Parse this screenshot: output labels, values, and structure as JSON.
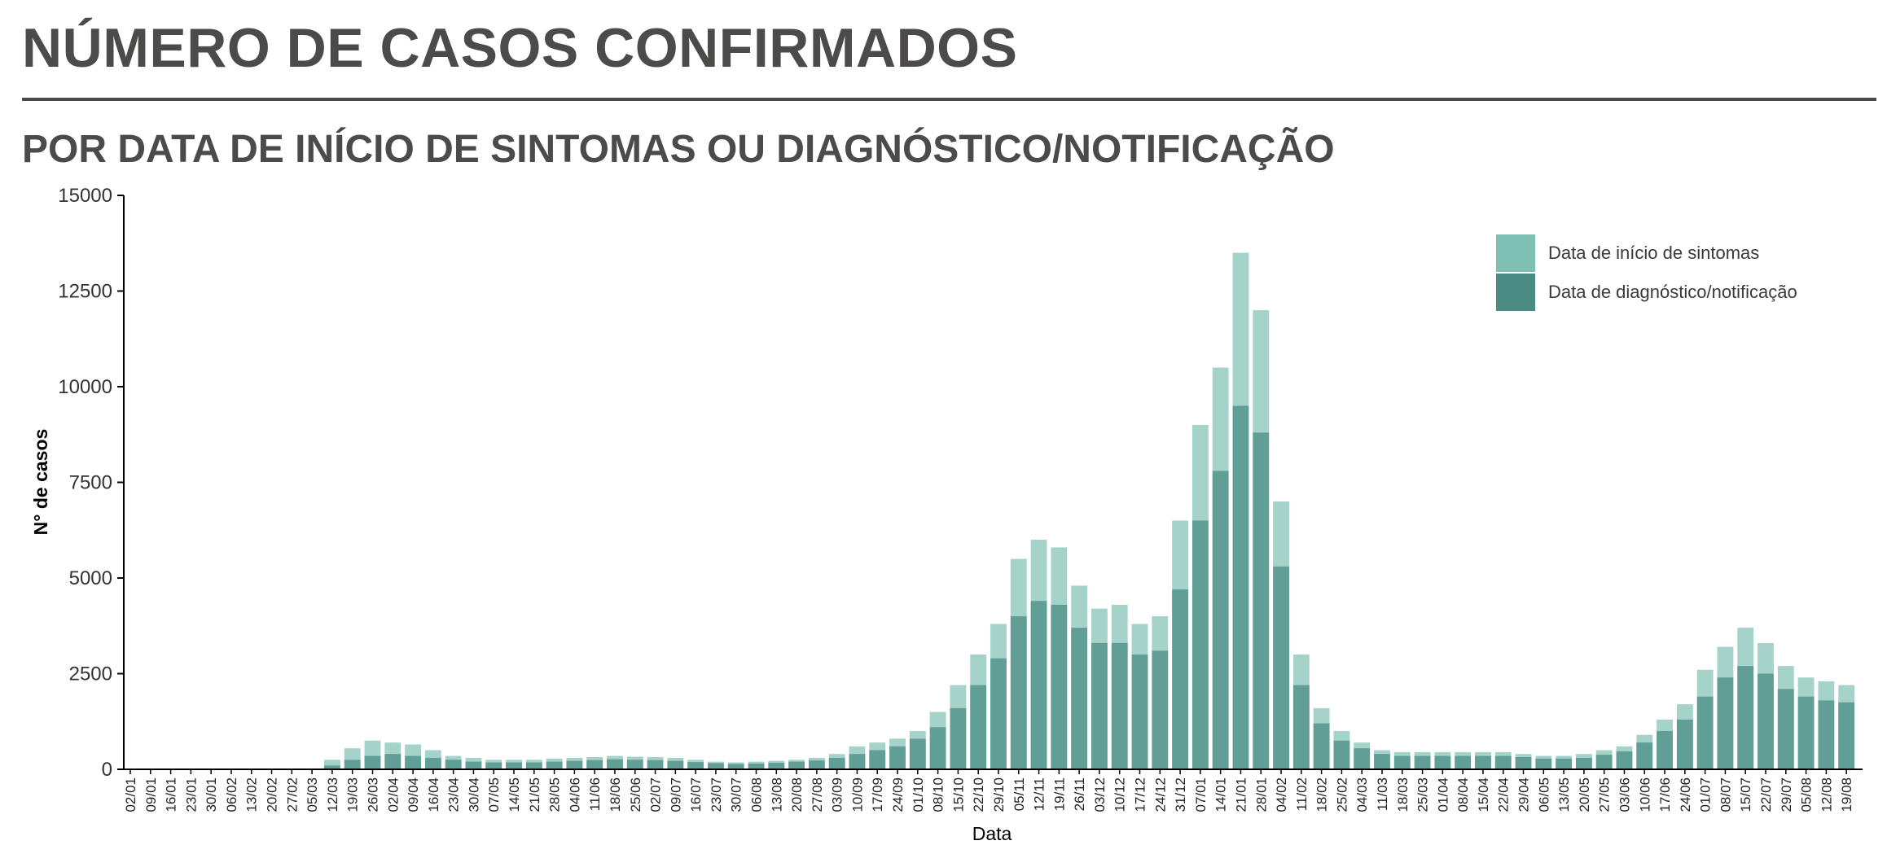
{
  "header": {
    "title": "NÚMERO DE CASOS CONFIRMADOS",
    "subtitle": "POR DATA DE INÍCIO DE SINTOMAS OU DIAGNÓSTICO/NOTIFICAÇÃO"
  },
  "chart_data": {
    "type": "bar",
    "xlabel": "Data",
    "ylabel": "N° de casos",
    "ylim": [
      0,
      15000
    ],
    "yticks": [
      0,
      2500,
      5000,
      7500,
      10000,
      12500,
      15000
    ],
    "grid": false,
    "legend_position": "top-right",
    "x_tick_labels": [
      "02/01",
      "09/01",
      "16/01",
      "23/01",
      "30/01",
      "06/02",
      "13/02",
      "20/02",
      "27/02",
      "05/03",
      "12/03",
      "19/03",
      "26/03",
      "02/04",
      "09/04",
      "16/04",
      "23/04",
      "30/04",
      "07/05",
      "14/05",
      "21/05",
      "28/05",
      "04/06",
      "11/06",
      "18/06",
      "25/06",
      "02/07",
      "09/07",
      "16/07",
      "23/07",
      "30/07",
      "06/08",
      "13/08",
      "20/08",
      "27/08",
      "03/09",
      "10/09",
      "17/09",
      "24/09",
      "01/10",
      "08/10",
      "15/10",
      "22/10",
      "29/10",
      "05/11",
      "12/11",
      "19/11",
      "26/11",
      "03/12",
      "10/12",
      "17/12",
      "24/12",
      "31/12",
      "07/01",
      "14/01",
      "21/01",
      "28/01",
      "04/02",
      "11/02",
      "18/02",
      "25/02",
      "04/03",
      "11/03",
      "18/03",
      "25/03",
      "01/04",
      "08/04",
      "15/04",
      "22/04",
      "29/04",
      "06/05",
      "13/05",
      "20/05",
      "27/05",
      "03/06",
      "10/06",
      "17/06",
      "24/06",
      "01/07",
      "08/07",
      "15/07",
      "22/07",
      "29/07",
      "05/08",
      "12/08",
      "19/08"
    ],
    "series": [
      {
        "name": "Data de início de sintomas",
        "color": "#7fc0b3",
        "weekly_values": [
          0,
          0,
          0,
          0,
          0,
          0,
          0,
          0,
          0,
          10,
          250,
          550,
          750,
          700,
          650,
          500,
          350,
          300,
          250,
          250,
          250,
          280,
          300,
          320,
          350,
          330,
          320,
          300,
          250,
          200,
          180,
          200,
          220,
          250,
          300,
          400,
          600,
          700,
          800,
          1000,
          1500,
          2200,
          3000,
          3800,
          5500,
          6000,
          5800,
          4800,
          4200,
          4300,
          3800,
          4000,
          6500,
          9000,
          10500,
          13500,
          12000,
          7000,
          3000,
          1600,
          1000,
          700,
          500,
          450,
          450,
          450,
          450,
          450,
          450,
          400,
          350,
          350,
          400,
          500,
          600,
          900,
          1300,
          1700,
          2600,
          3200,
          3700,
          3300,
          2700,
          2400,
          2300,
          2200
        ]
      },
      {
        "name": "Data de diagnóstico/notificação",
        "color": "#4a8c84",
        "weekly_values": [
          0,
          0,
          0,
          0,
          0,
          0,
          0,
          0,
          0,
          0,
          100,
          250,
          350,
          400,
          350,
          300,
          250,
          200,
          180,
          180,
          180,
          200,
          220,
          240,
          260,
          250,
          240,
          220,
          190,
          160,
          140,
          150,
          170,
          200,
          230,
          300,
          400,
          500,
          600,
          800,
          1100,
          1600,
          2200,
          2900,
          4000,
          4400,
          4300,
          3700,
          3300,
          3300,
          3000,
          3100,
          4700,
          6500,
          7800,
          9500,
          8800,
          5300,
          2200,
          1200,
          750,
          550,
          400,
          350,
          350,
          350,
          350,
          350,
          350,
          320,
          280,
          280,
          300,
          380,
          470,
          700,
          1000,
          1300,
          1900,
          2400,
          2700,
          2500,
          2100,
          1900,
          1800,
          1750
        ]
      }
    ]
  }
}
